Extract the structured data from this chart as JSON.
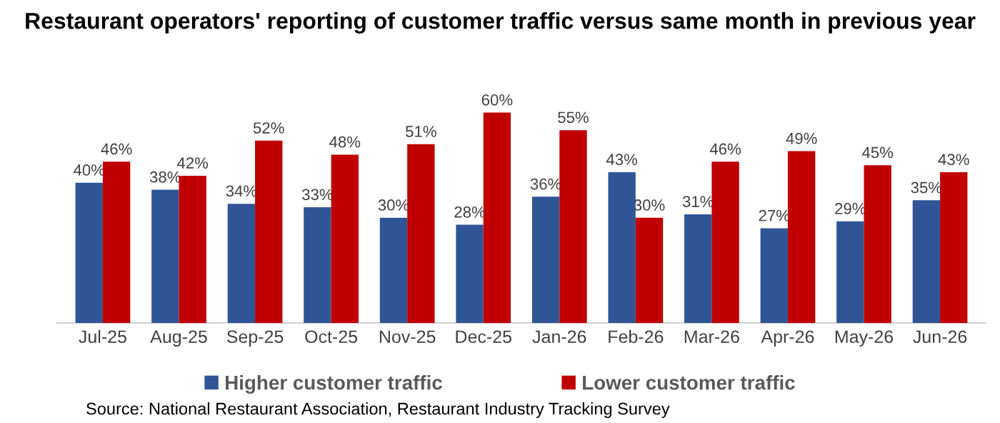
{
  "chart_data": {
    "type": "bar",
    "title": "Restaurant operators' reporting of customer traffic versus same month in previous year",
    "categories": [
      "Jul-25",
      "Aug-25",
      "Sep-25",
      "Oct-25",
      "Nov-25",
      "Dec-25",
      "Jan-26",
      "Feb-26",
      "Mar-26",
      "Apr-26",
      "May-26",
      "Jun-26"
    ],
    "series": [
      {
        "name": "Higher customer traffic",
        "color": "#2f5597",
        "values": [
          40,
          38,
          34,
          33,
          30,
          28,
          36,
          43,
          31,
          27,
          29,
          35
        ],
        "value_labels": [
          "40%",
          "38%",
          "34%",
          "33%",
          "30%",
          "28%",
          "36%",
          "43%",
          "31%",
          "27%",
          "29%",
          "35%"
        ]
      },
      {
        "name": "Lower customer traffic",
        "color": "#c00000",
        "values": [
          46,
          42,
          52,
          48,
          51,
          60,
          55,
          30,
          46,
          49,
          45,
          43
        ],
        "value_labels": [
          "46%",
          "42%",
          "52%",
          "48%",
          "51%",
          "60%",
          "55%",
          "30%",
          "46%",
          "49%",
          "45%",
          "43%"
        ]
      }
    ],
    "tick_labels": "x",
    "legend": "bottom",
    "annotations": [
      "Source: National Restaurant Association, Restaurant Industry Tracking Survey"
    ]
  }
}
